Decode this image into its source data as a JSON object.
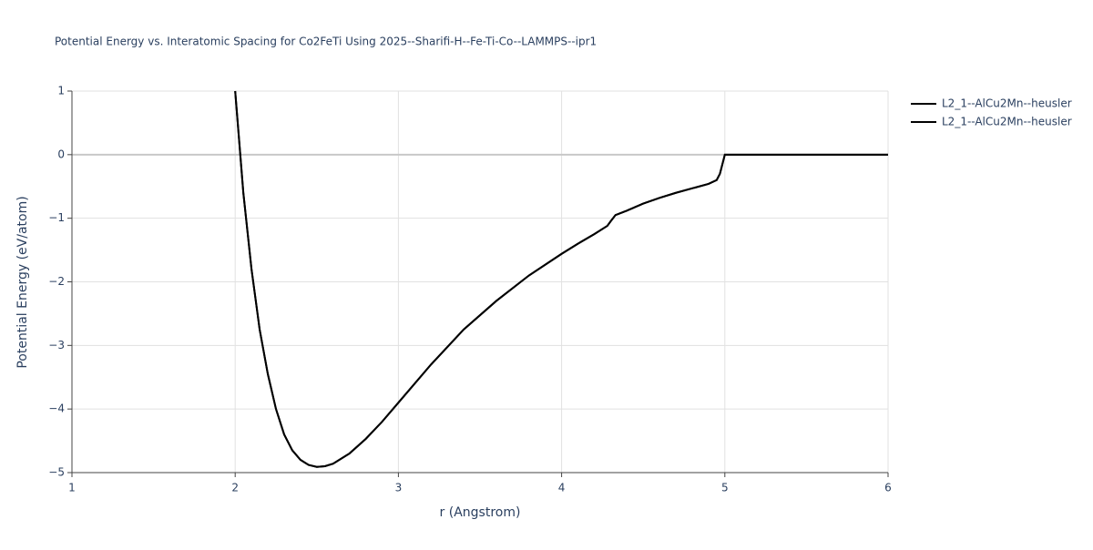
{
  "chart_data": {
    "type": "line",
    "title": "Potential Energy vs. Interatomic Spacing for Co2FeTi Using 2025--Sharifi-H--Fe-Ti-Co--LAMMPS--ipr1",
    "x_label": "r (Angstrom)",
    "y_label": "Potential Energy (eV/atom)",
    "x": [
      2.0,
      2.05,
      2.1,
      2.15,
      2.2,
      2.25,
      2.3,
      2.35,
      2.4,
      2.45,
      2.5,
      2.55,
      2.6,
      2.7,
      2.8,
      2.9,
      3.0,
      3.2,
      3.4,
      3.6,
      3.8,
      4.0,
      4.1,
      4.2,
      4.28,
      4.3,
      4.33,
      4.4,
      4.5,
      4.6,
      4.7,
      4.8,
      4.9,
      4.95,
      4.97,
      5.0,
      5.5,
      6.0
    ],
    "series": [
      {
        "name": "L2_1--AlCu2Mn--heusler",
        "color": "#000000",
        "values": [
          1.0,
          -0.6,
          -1.8,
          -2.75,
          -3.45,
          -4.0,
          -4.4,
          -4.65,
          -4.8,
          -4.88,
          -4.91,
          -4.9,
          -4.86,
          -4.7,
          -4.47,
          -4.2,
          -3.9,
          -3.3,
          -2.75,
          -2.3,
          -1.9,
          -1.56,
          -1.4,
          -1.25,
          -1.12,
          -1.05,
          -0.95,
          -0.88,
          -0.77,
          -0.68,
          -0.6,
          -0.53,
          -0.46,
          -0.4,
          -0.3,
          0,
          0,
          0
        ]
      },
      {
        "name": "L2_1--AlCu2Mn--heusler",
        "color": "#000000",
        "values": [
          1.0,
          -0.6,
          -1.8,
          -2.75,
          -3.45,
          -4.0,
          -4.4,
          -4.65,
          -4.8,
          -4.88,
          -4.91,
          -4.9,
          -4.86,
          -4.7,
          -4.47,
          -4.2,
          -3.9,
          -3.3,
          -2.75,
          -2.3,
          -1.9,
          -1.56,
          -1.4,
          -1.25,
          -1.12,
          -1.05,
          -0.95,
          -0.88,
          -0.77,
          -0.68,
          -0.6,
          -0.53,
          -0.46,
          -0.4,
          -0.3,
          0,
          0,
          0
        ]
      }
    ],
    "xlim": [
      1,
      6
    ],
    "xticks": [
      1,
      2,
      3,
      4,
      5,
      6
    ],
    "ylim": [
      -5,
      1
    ],
    "yticks": [
      {
        "value": -5,
        "label": "−5"
      },
      {
        "value": -4,
        "label": "−4"
      },
      {
        "value": -3,
        "label": "−3"
      },
      {
        "value": -2,
        "label": "−2"
      },
      {
        "value": -1,
        "label": "−1"
      },
      0,
      1
    ],
    "grid": true,
    "legend": "right"
  }
}
